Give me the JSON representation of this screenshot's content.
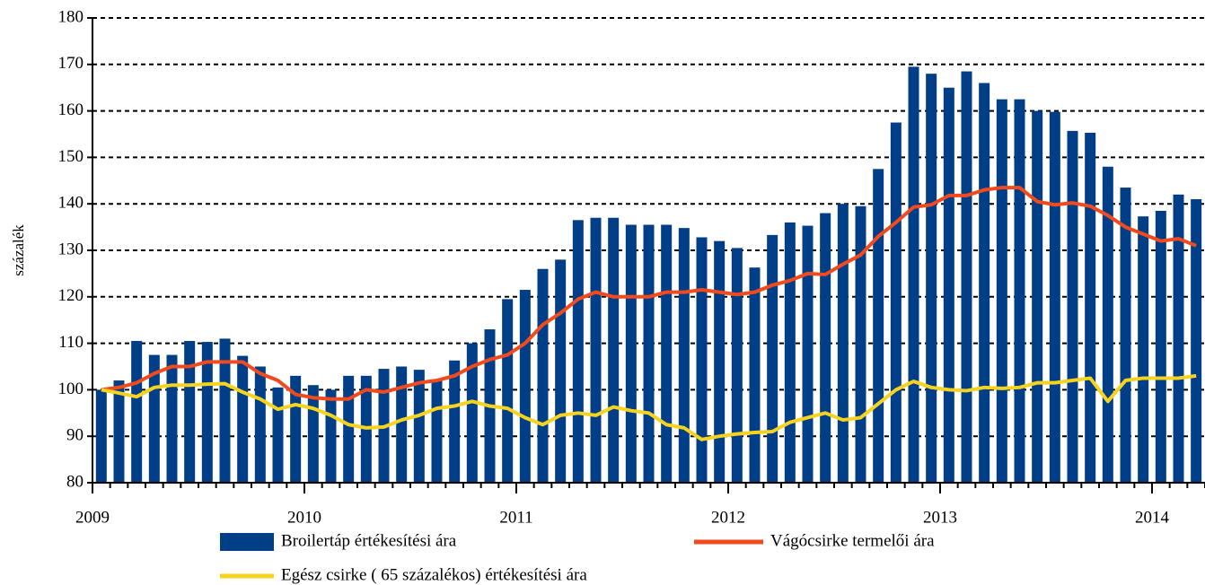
{
  "chart_data": {
    "type": "bar",
    "ylabel": "százalék",
    "categories": [
      "2009",
      null,
      null,
      null,
      null,
      null,
      null,
      null,
      null,
      null,
      null,
      null,
      "2010",
      null,
      null,
      null,
      null,
      null,
      null,
      null,
      null,
      null,
      null,
      null,
      "2011",
      null,
      null,
      null,
      null,
      null,
      null,
      null,
      null,
      null,
      null,
      null,
      "2012",
      null,
      null,
      null,
      null,
      null,
      null,
      null,
      null,
      null,
      null,
      null,
      "2013",
      null,
      null,
      null,
      null,
      null,
      null,
      null,
      null,
      null,
      null,
      null,
      "2014",
      null,
      null
    ],
    "series": [
      {
        "name": "Broilertáp értékesítési ára",
        "type": "bar",
        "color": "#003f87",
        "values": [
          100,
          102,
          110.5,
          107.5,
          107.5,
          110.5,
          110.3,
          111,
          107.3,
          105,
          100.5,
          103,
          101,
          100,
          103,
          103,
          104.5,
          105,
          104.3,
          102,
          106.3,
          110,
          113,
          119.5,
          121.5,
          126,
          128,
          136.5,
          137,
          137,
          135.5,
          135.5,
          135.5,
          134.8,
          132.8,
          132,
          130.5,
          126.3,
          133.3,
          136,
          135.3,
          138,
          140,
          139.5,
          147.5,
          157.5,
          169.5,
          168,
          165,
          168.5,
          166,
          162.5,
          162.5,
          160,
          159.8,
          155.7,
          155.3,
          148,
          143.5,
          137.3,
          138.5,
          142,
          141
        ]
      },
      {
        "name": "Vágócsirke termelői ára",
        "type": "line",
        "color": "#f24a1c",
        "values": [
          100,
          100.5,
          101.5,
          103.5,
          105,
          105,
          106,
          106,
          106,
          103.5,
          102,
          99,
          98.3,
          98,
          98,
          100,
          99.5,
          100.5,
          101.5,
          102,
          103,
          105,
          106.5,
          107.5,
          110,
          114,
          116.5,
          119.5,
          121,
          120,
          120,
          120,
          121,
          121,
          121.5,
          121,
          120.5,
          121,
          122.5,
          123.5,
          125,
          124.8,
          127,
          129,
          133,
          136,
          139.3,
          139.8,
          141.8,
          141.8,
          143,
          143.5,
          143.5,
          140.5,
          139.8,
          140.2,
          139.5,
          137.5,
          135,
          133.5,
          132,
          132.5,
          131
        ]
      },
      {
        "name": "Egész csirke ( 65 százalékos) értékesítési ára",
        "type": "line",
        "color": "#f5d31f",
        "values": [
          100,
          99.3,
          98.5,
          100.5,
          101,
          101,
          101.2,
          101.3,
          99.5,
          98,
          95.8,
          96.8,
          96,
          94.5,
          92.5,
          91.8,
          92,
          93.5,
          94.5,
          96,
          96.5,
          97.5,
          96.5,
          96,
          94,
          92.5,
          94.5,
          95,
          94.5,
          96.3,
          95.5,
          95,
          92.5,
          91.8,
          89.3,
          90,
          90.5,
          90.8,
          91,
          93,
          94,
          95,
          93.5,
          94,
          97,
          100,
          101.8,
          100.5,
          100,
          99.8,
          100.5,
          100.3,
          100.5,
          101.5,
          101.5,
          102,
          102.5,
          97.5,
          102,
          102.5,
          102.5,
          102.5,
          103
        ]
      }
    ],
    "ylim": [
      80,
      180
    ],
    "yticks": [
      80,
      90,
      100,
      110,
      120,
      130,
      140,
      150,
      160,
      170,
      180
    ],
    "grid": true
  }
}
